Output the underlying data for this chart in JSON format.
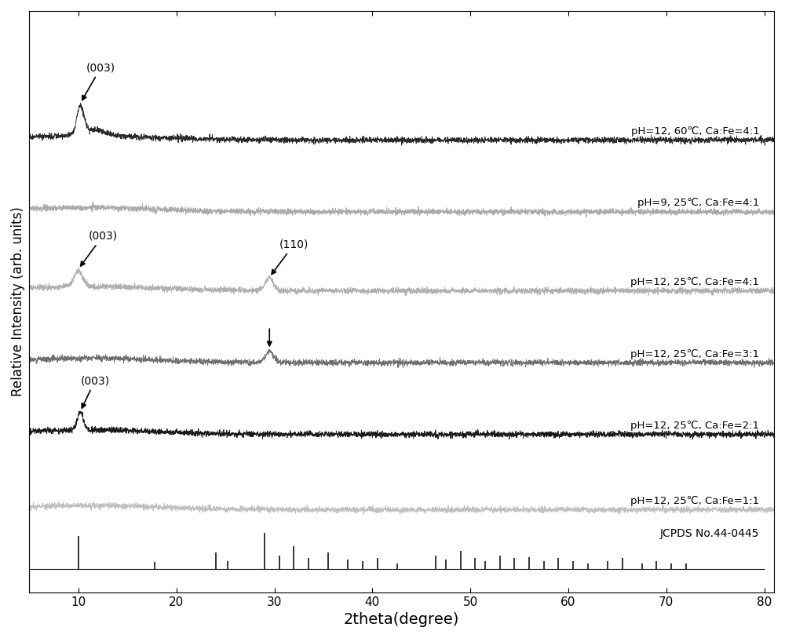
{
  "xlabel": "2theta(degree)",
  "ylabel": "Relative Intensity (arb. units)",
  "xlim": [
    5,
    81
  ],
  "ylim": [
    -0.3,
    7.8
  ],
  "x_ticks": [
    10,
    20,
    30,
    40,
    50,
    60,
    70,
    80
  ],
  "labels": [
    "pH=12, 60℃, Ca:Fe=4:1",
    "pH=9, 25℃, Ca:Fe=4:1",
    "pH=12, 25℃, Ca:Fe=4:1",
    "pH=12, 25℃, Ca:Fe=3:1",
    "pH=12, 25℃, Ca:Fe=2:1",
    "pH=12, 25℃, Ca:Fe=1:1"
  ],
  "offsets": [
    6.0,
    5.0,
    3.9,
    2.9,
    1.9,
    0.85
  ],
  "colors": [
    "#2a2a2a",
    "#aaaaaa",
    "#b0b0b0",
    "#707070",
    "#1a1a1a",
    "#c0c0c0"
  ],
  "jcpds_label": "JCPDS No.44-0445",
  "jcpds_peaks": [
    10.0,
    17.8,
    24.0,
    25.2,
    29.0,
    30.5,
    32.0,
    33.5,
    35.5,
    37.5,
    39.0,
    40.5,
    42.5,
    46.5,
    47.5,
    49.0,
    50.5,
    51.5,
    53.0,
    54.5,
    56.0,
    57.5,
    59.0,
    60.5,
    62.0,
    64.0,
    65.5,
    67.5,
    69.0,
    70.5,
    72.0
  ],
  "jcpds_heights": [
    0.55,
    0.12,
    0.28,
    0.14,
    0.6,
    0.22,
    0.38,
    0.18,
    0.28,
    0.16,
    0.14,
    0.18,
    0.1,
    0.22,
    0.16,
    0.3,
    0.18,
    0.14,
    0.22,
    0.18,
    0.2,
    0.14,
    0.18,
    0.13,
    0.1,
    0.14,
    0.18,
    0.1,
    0.13,
    0.1,
    0.1
  ]
}
